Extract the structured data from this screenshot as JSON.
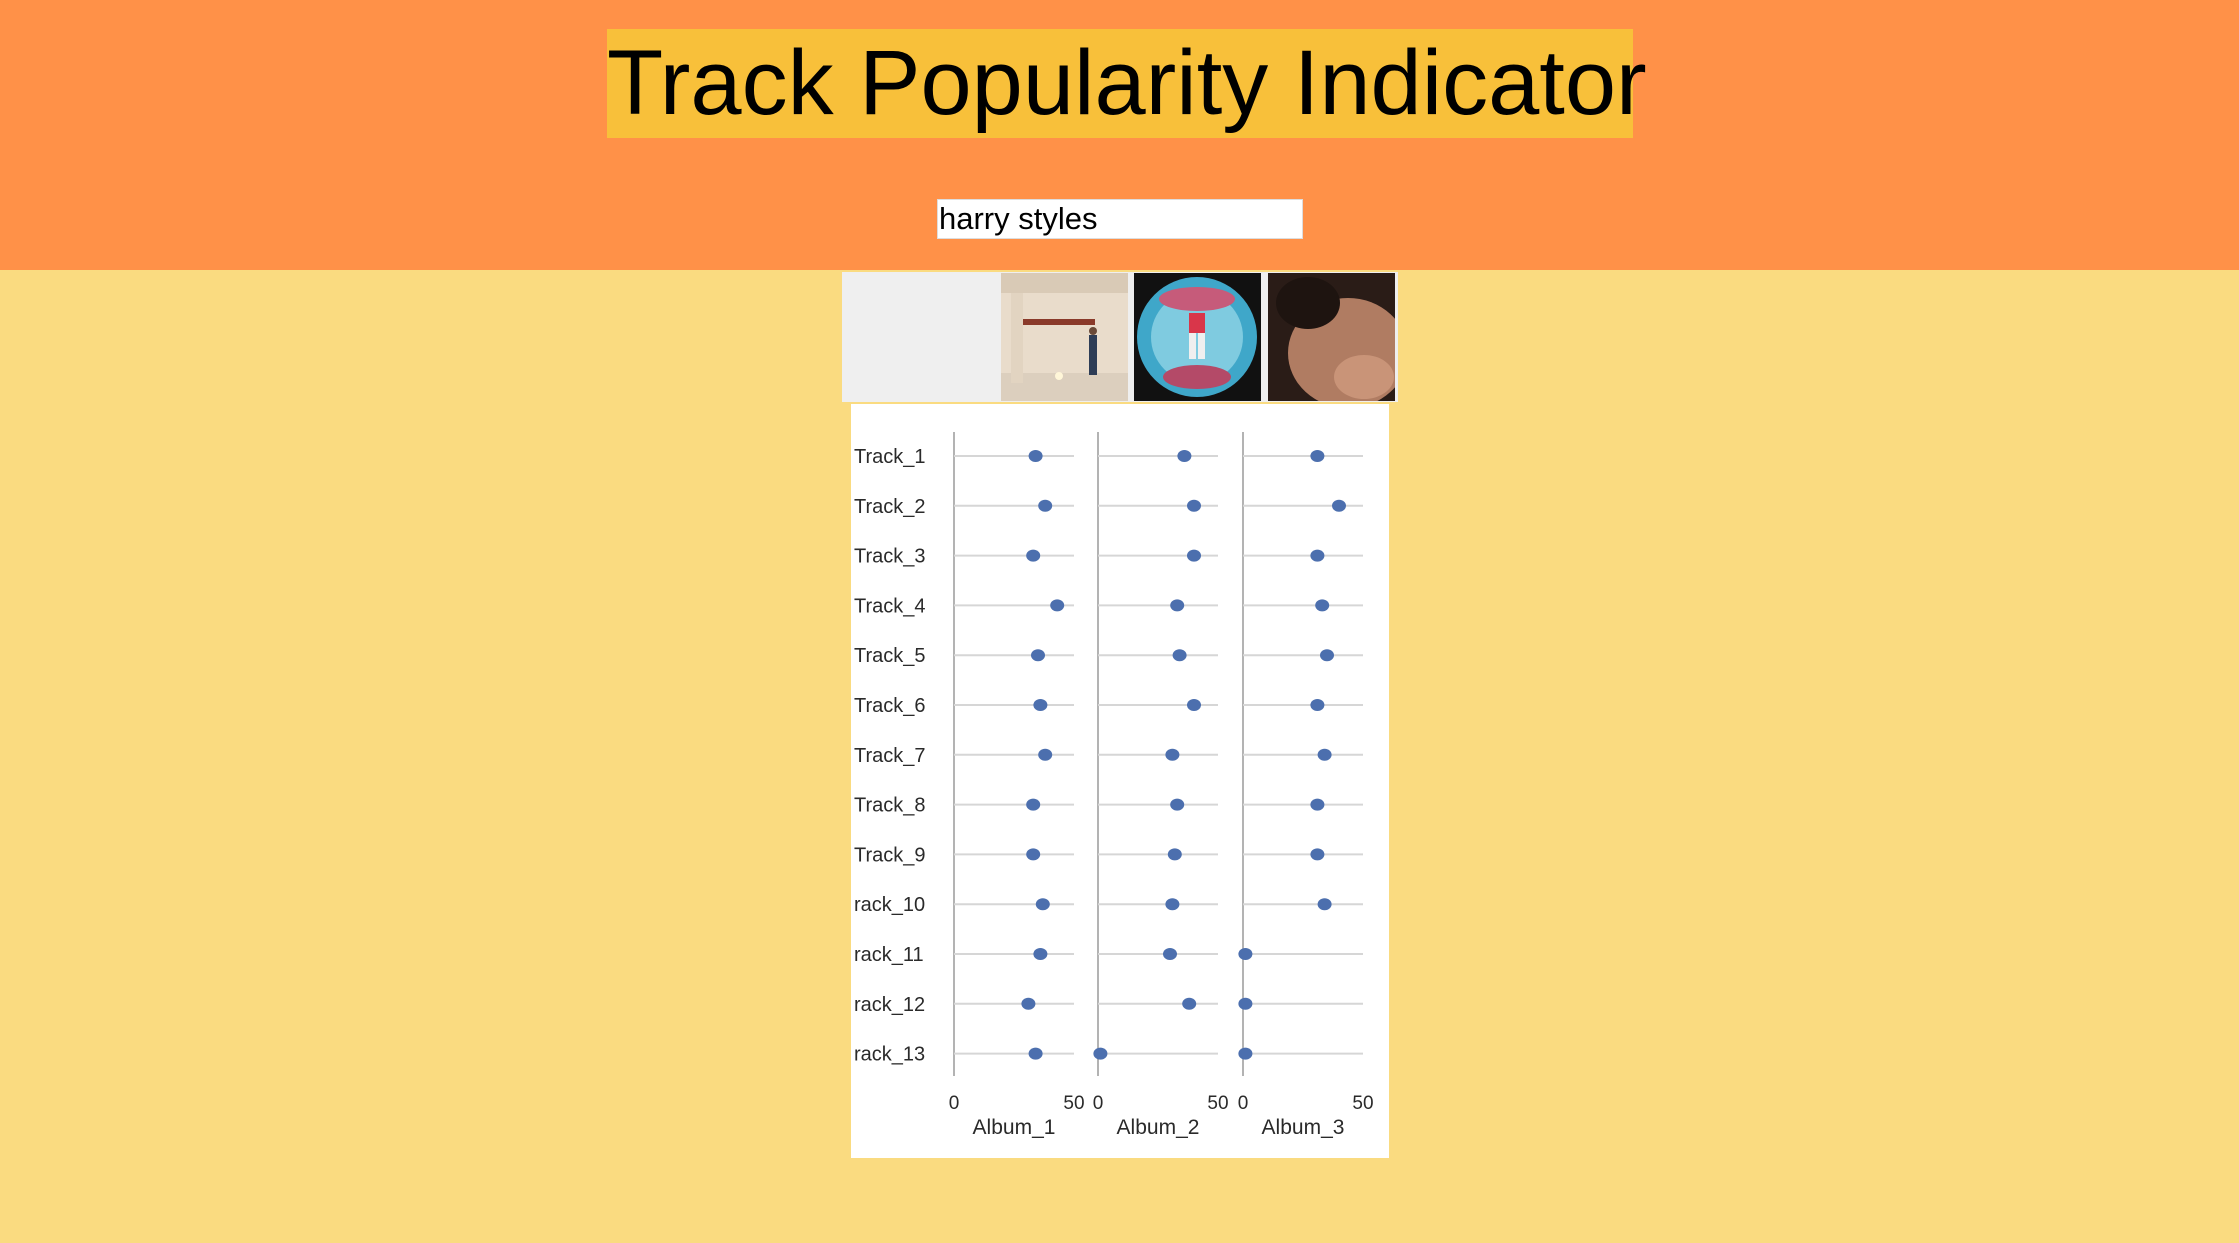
{
  "header": {
    "title": "Track Popularity Indicator",
    "background": "#FF9148",
    "title_background": "#F8C03A"
  },
  "search": {
    "value": "harry styles"
  },
  "covers": [
    {
      "name": "album-cover-1"
    },
    {
      "name": "album-cover-2"
    },
    {
      "name": "album-cover-3"
    }
  ],
  "page_background": "#FADB80",
  "chart_data": {
    "type": "scatter",
    "orientation": "horizontal-dot-plot",
    "categories": [
      "Track_1",
      "Track_2",
      "Track_3",
      "Track_4",
      "Track_5",
      "Track_6",
      "Track_7",
      "Track_8",
      "Track_9",
      "rack_10",
      "rack_11",
      "rack_12",
      "rack_13"
    ],
    "xlim": [
      0,
      50
    ],
    "xticks": [
      "0",
      "50"
    ],
    "marker_color": "#4C6FAE",
    "grid": true,
    "series": [
      {
        "name": "Album_1",
        "values": [
          34,
          38,
          33,
          43,
          35,
          36,
          38,
          33,
          33,
          37,
          36,
          31,
          34
        ]
      },
      {
        "name": "Album_2",
        "values": [
          36,
          40,
          40,
          33,
          34,
          40,
          31,
          33,
          32,
          31,
          30,
          38,
          1
        ]
      },
      {
        "name": "Album_3",
        "values": [
          31,
          40,
          31,
          33,
          35,
          31,
          34,
          31,
          31,
          34,
          1,
          1,
          1
        ]
      }
    ]
  }
}
